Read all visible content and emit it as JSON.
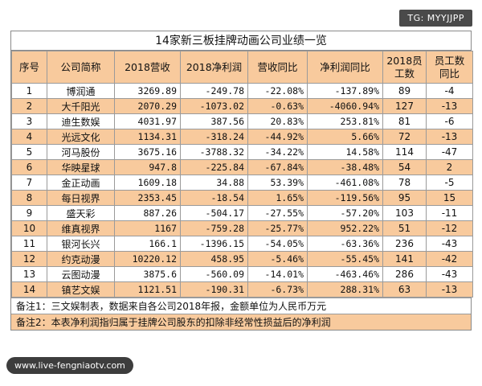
{
  "watermark_top": "TG: MYYJJPP",
  "watermark_bottom": "www.live-fengniaotv.com",
  "title": "14家新三板挂牌动画公司业绩一览",
  "columns": [
    "序号",
    "公司简称",
    "2018营收",
    "2018净利润",
    "营收同比",
    "净利润同比",
    "2018员工数",
    "员工数同比"
  ],
  "rows": [
    [
      "1",
      "博润通",
      "3269.89",
      "-249.78",
      "-22.08%",
      "-137.89%",
      "89",
      "-4"
    ],
    [
      "2",
      "大千阳光",
      "2070.29",
      "-1073.02",
      "-0.63%",
      "-4060.94%",
      "127",
      "-13"
    ],
    [
      "3",
      "迪生数娱",
      "4031.97",
      "387.56",
      "20.83%",
      "253.81%",
      "81",
      "-6"
    ],
    [
      "4",
      "光远文化",
      "1134.31",
      "-318.24",
      "-44.92%",
      "5.66%",
      "72",
      "-13"
    ],
    [
      "5",
      "河马股份",
      "3675.16",
      "-3788.32",
      "-34.22%",
      "14.58%",
      "114",
      "-47"
    ],
    [
      "6",
      "华映星球",
      "947.8",
      "-225.84",
      "-67.84%",
      "-38.48%",
      "54",
      "2"
    ],
    [
      "7",
      "金正动画",
      "1609.18",
      "34.88",
      "53.39%",
      "-461.08%",
      "78",
      "-5"
    ],
    [
      "8",
      "每日视界",
      "2353.45",
      "-18.54",
      "1.65%",
      "-119.56%",
      "95",
      "15"
    ],
    [
      "9",
      "盛天彩",
      "887.26",
      "-504.17",
      "-27.55%",
      "-57.20%",
      "103",
      "-11"
    ],
    [
      "10",
      "维真视界",
      "1167",
      "-759.28",
      "-25.77%",
      "952.22%",
      "51",
      "-12"
    ],
    [
      "11",
      "银河长兴",
      "166.1",
      "-1396.15",
      "-54.05%",
      "-63.36%",
      "236",
      "-43"
    ],
    [
      "12",
      "约克动漫",
      "10220.12",
      "458.95",
      "-5.46%",
      "-55.45%",
      "141",
      "-42"
    ],
    [
      "13",
      "云图动漫",
      "3875.6",
      "-560.09",
      "-14.01%",
      "-463.46%",
      "286",
      "-43"
    ],
    [
      "14",
      "镇艺文娱",
      "1121.51",
      "-190.31",
      "-6.73%",
      "288.31%",
      "63",
      "-13"
    ]
  ],
  "notes": [
    "备注1：三文娱制表，数据来自各公司2018年报，金额单位为人民币万元",
    "备注2：本表净利润指归属于挂牌公司股东的扣除非经常性损益后的净利润"
  ],
  "colors": {
    "band": "#f8ca9d",
    "border": "#9a9a9a",
    "watermark_bg": "#4a4a4a"
  }
}
